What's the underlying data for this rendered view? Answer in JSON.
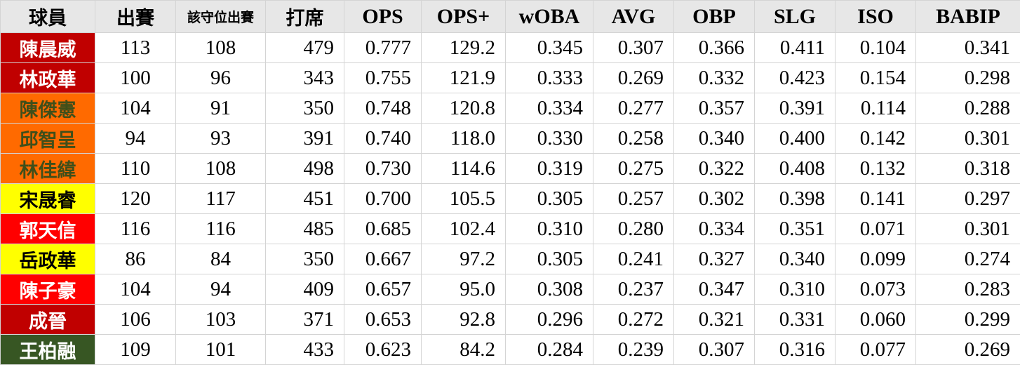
{
  "table": {
    "header": [
      "球員",
      "出賽",
      "該守位出賽",
      "打席",
      "OPS",
      "OPS+",
      "wOBA",
      "AVG",
      "OBP",
      "SLG",
      "ISO",
      "BABIP"
    ],
    "rows": [
      {
        "name": "陳晨威",
        "color": "#c00000",
        "text_color": "#ffffff",
        "cells": [
          "113",
          "108",
          "479",
          "0.777",
          "129.2",
          "0.345",
          "0.307",
          "0.366",
          "0.411",
          "0.104",
          "0.341"
        ]
      },
      {
        "name": "林政華",
        "color": "#c00000",
        "text_color": "#ffffff",
        "cells": [
          "100",
          "96",
          "343",
          "0.755",
          "121.9",
          "0.333",
          "0.269",
          "0.332",
          "0.423",
          "0.154",
          "0.298"
        ]
      },
      {
        "name": "陳傑憲",
        "color": "#ff6a00",
        "text_color": "#3f4f1a",
        "cells": [
          "104",
          "91",
          "350",
          "0.748",
          "120.8",
          "0.334",
          "0.277",
          "0.357",
          "0.391",
          "0.114",
          "0.288"
        ]
      },
      {
        "name": "邱智呈",
        "color": "#ff6a00",
        "text_color": "#3f4f1a",
        "cells": [
          "94",
          "93",
          "391",
          "0.740",
          "118.0",
          "0.330",
          "0.258",
          "0.340",
          "0.400",
          "0.142",
          "0.301"
        ]
      },
      {
        "name": "林佳緯",
        "color": "#ff6a00",
        "text_color": "#3f4f1a",
        "cells": [
          "110",
          "108",
          "498",
          "0.730",
          "114.6",
          "0.319",
          "0.275",
          "0.322",
          "0.408",
          "0.132",
          "0.318"
        ]
      },
      {
        "name": "宋晟睿",
        "color": "#ffff00",
        "text_color": "#000000",
        "cells": [
          "120",
          "117",
          "451",
          "0.700",
          "105.5",
          "0.305",
          "0.257",
          "0.302",
          "0.398",
          "0.141",
          "0.297"
        ]
      },
      {
        "name": "郭天信",
        "color": "#ff0000",
        "text_color": "#ffffff",
        "cells": [
          "116",
          "116",
          "485",
          "0.685",
          "102.4",
          "0.310",
          "0.280",
          "0.334",
          "0.351",
          "0.071",
          "0.301"
        ]
      },
      {
        "name": "岳政華",
        "color": "#ffff00",
        "text_color": "#000000",
        "cells": [
          "86",
          "84",
          "350",
          "0.667",
          "97.2",
          "0.305",
          "0.241",
          "0.327",
          "0.340",
          "0.099",
          "0.274"
        ]
      },
      {
        "name": "陳子豪",
        "color": "#ff0000",
        "text_color": "#ffffff",
        "cells": [
          "104",
          "94",
          "409",
          "0.657",
          "95.0",
          "0.308",
          "0.237",
          "0.347",
          "0.310",
          "0.073",
          "0.283"
        ]
      },
      {
        "name": "成晉",
        "color": "#c00000",
        "text_color": "#ffffff",
        "cells": [
          "106",
          "103",
          "371",
          "0.653",
          "92.8",
          "0.296",
          "0.272",
          "0.321",
          "0.331",
          "0.060",
          "0.299"
        ]
      },
      {
        "name": "王柏融",
        "color": "#375623",
        "text_color": "#ffffff",
        "cells": [
          "109",
          "101",
          "433",
          "0.623",
          "84.2",
          "0.284",
          "0.239",
          "0.307",
          "0.316",
          "0.077",
          "0.269"
        ]
      }
    ]
  }
}
